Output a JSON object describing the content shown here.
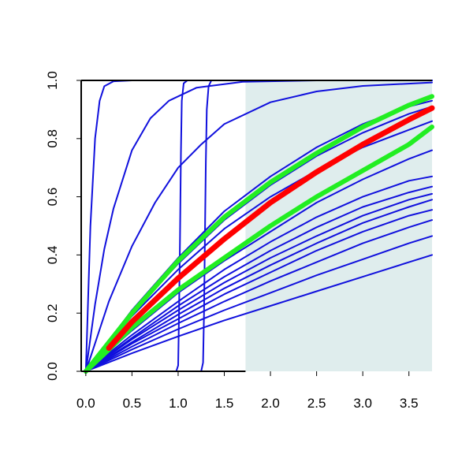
{
  "chart_data": {
    "type": "line",
    "title": "",
    "xlabel": "",
    "ylabel": "",
    "xlim": [
      -0.05,
      3.75
    ],
    "ylim": [
      0,
      1
    ],
    "x_ticks": [
      "0.0",
      "0.5",
      "1.0",
      "1.5",
      "2.0",
      "2.5",
      "3.0",
      "3.5"
    ],
    "y_ticks": [
      "0.0",
      "0.2",
      "0.4",
      "0.6",
      "0.8",
      "1.0"
    ],
    "grid": false,
    "shaded_region": {
      "x_from": 1.73,
      "x_to": 3.75,
      "color": "#dfeded"
    },
    "colors": {
      "blue": "#1010dd",
      "red": "#ff0000",
      "green": "#22ee22",
      "axis": "#000000"
    },
    "series": [
      {
        "color": "blue",
        "width": 2,
        "points": [
          [
            0,
            0
          ],
          [
            0.05,
            0.5
          ],
          [
            0.1,
            0.8
          ],
          [
            0.15,
            0.93
          ],
          [
            0.2,
            0.98
          ],
          [
            0.3,
            0.997
          ],
          [
            0.5,
            1.0
          ],
          [
            3.75,
            1.0
          ]
        ]
      },
      {
        "color": "blue",
        "width": 2,
        "points": [
          [
            0,
            0
          ],
          [
            0.1,
            0.23
          ],
          [
            0.2,
            0.42
          ],
          [
            0.3,
            0.56
          ],
          [
            0.5,
            0.76
          ],
          [
            0.7,
            0.87
          ],
          [
            0.9,
            0.93
          ],
          [
            1.2,
            0.975
          ],
          [
            1.7,
            0.995
          ],
          [
            2.5,
            1.0
          ],
          [
            3.75,
            1.0
          ]
        ]
      },
      {
        "color": "blue",
        "width": 2,
        "points": [
          [
            0,
            0
          ],
          [
            0.25,
            0.24
          ],
          [
            0.5,
            0.43
          ],
          [
            0.75,
            0.58
          ],
          [
            1.0,
            0.7
          ],
          [
            1.25,
            0.78
          ],
          [
            1.5,
            0.85
          ],
          [
            2.0,
            0.925
          ],
          [
            2.5,
            0.962
          ],
          [
            3.0,
            0.981
          ],
          [
            3.75,
            0.993
          ]
        ]
      },
      {
        "color": "blue",
        "width": 2,
        "points": [
          [
            0,
            0
          ],
          [
            0.98,
            0.0
          ],
          [
            1.0,
            0.02
          ],
          [
            1.01,
            0.2
          ],
          [
            1.02,
            0.45
          ],
          [
            1.03,
            0.75
          ],
          [
            1.04,
            0.93
          ],
          [
            1.06,
            0.99
          ],
          [
            1.1,
            1.0
          ],
          [
            3.75,
            1.0
          ]
        ]
      },
      {
        "color": "blue",
        "width": 2,
        "points": [
          [
            0,
            0
          ],
          [
            1.25,
            0.0
          ],
          [
            1.27,
            0.03
          ],
          [
            1.28,
            0.2
          ],
          [
            1.29,
            0.45
          ],
          [
            1.3,
            0.72
          ],
          [
            1.31,
            0.9
          ],
          [
            1.33,
            0.98
          ],
          [
            1.36,
            1.0
          ],
          [
            3.75,
            1.0
          ]
        ]
      },
      {
        "color": "blue",
        "width": 2,
        "points": [
          [
            0,
            0
          ],
          [
            0.5,
            0.19
          ],
          [
            1.0,
            0.35
          ],
          [
            1.5,
            0.49
          ],
          [
            2.0,
            0.6
          ],
          [
            2.5,
            0.69
          ],
          [
            3.0,
            0.77
          ],
          [
            3.5,
            0.83
          ],
          [
            3.75,
            0.86
          ]
        ]
      },
      {
        "color": "blue",
        "width": 2,
        "points": [
          [
            0,
            0
          ],
          [
            0.5,
            0.14
          ],
          [
            1.0,
            0.27
          ],
          [
            1.5,
            0.38
          ],
          [
            2.0,
            0.48
          ],
          [
            2.5,
            0.58
          ],
          [
            3.0,
            0.66
          ],
          [
            3.5,
            0.73
          ],
          [
            3.75,
            0.76
          ]
        ]
      },
      {
        "color": "blue",
        "width": 2,
        "points": [
          [
            0,
            0
          ],
          [
            0.5,
            0.125
          ],
          [
            1.0,
            0.24
          ],
          [
            1.5,
            0.35
          ],
          [
            2.0,
            0.445
          ],
          [
            2.5,
            0.53
          ],
          [
            3.0,
            0.6
          ],
          [
            3.5,
            0.655
          ],
          [
            3.75,
            0.67
          ]
        ]
      },
      {
        "color": "blue",
        "width": 2,
        "points": [
          [
            0,
            0
          ],
          [
            0.5,
            0.115
          ],
          [
            1.0,
            0.225
          ],
          [
            1.5,
            0.325
          ],
          [
            2.0,
            0.415
          ],
          [
            2.5,
            0.495
          ],
          [
            3.0,
            0.565
          ],
          [
            3.5,
            0.615
          ],
          [
            3.75,
            0.635
          ]
        ]
      },
      {
        "color": "blue",
        "width": 2,
        "points": [
          [
            0,
            0
          ],
          [
            0.5,
            0.11
          ],
          [
            1.0,
            0.21
          ],
          [
            1.5,
            0.305
          ],
          [
            2.0,
            0.39
          ],
          [
            2.5,
            0.465
          ],
          [
            3.0,
            0.535
          ],
          [
            3.5,
            0.59
          ],
          [
            3.75,
            0.61
          ]
        ]
      },
      {
        "color": "blue",
        "width": 2,
        "points": [
          [
            0,
            0
          ],
          [
            0.5,
            0.1
          ],
          [
            1.0,
            0.195
          ],
          [
            1.5,
            0.285
          ],
          [
            2.0,
            0.365
          ],
          [
            2.5,
            0.44
          ],
          [
            3.0,
            0.51
          ],
          [
            3.5,
            0.565
          ],
          [
            3.75,
            0.59
          ]
        ]
      },
      {
        "color": "blue",
        "width": 2,
        "points": [
          [
            0,
            0
          ],
          [
            0.5,
            0.095
          ],
          [
            1.0,
            0.18
          ],
          [
            1.5,
            0.265
          ],
          [
            2.0,
            0.34
          ],
          [
            2.5,
            0.415
          ],
          [
            3.0,
            0.48
          ],
          [
            3.5,
            0.535
          ],
          [
            3.75,
            0.555
          ]
        ]
      },
      {
        "color": "blue",
        "width": 2,
        "points": [
          [
            0,
            0
          ],
          [
            0.5,
            0.085
          ],
          [
            1.0,
            0.165
          ],
          [
            1.5,
            0.24
          ],
          [
            2.0,
            0.31
          ],
          [
            2.5,
            0.375
          ],
          [
            3.0,
            0.44
          ],
          [
            3.5,
            0.495
          ],
          [
            3.75,
            0.52
          ]
        ]
      },
      {
        "color": "blue",
        "width": 2,
        "points": [
          [
            0,
            0
          ],
          [
            0.5,
            0.075
          ],
          [
            1.0,
            0.145
          ],
          [
            1.5,
            0.21
          ],
          [
            2.0,
            0.27
          ],
          [
            2.5,
            0.33
          ],
          [
            3.0,
            0.385
          ],
          [
            3.5,
            0.44
          ],
          [
            3.75,
            0.465
          ]
        ]
      },
      {
        "color": "blue",
        "width": 2,
        "points": [
          [
            0,
            0
          ],
          [
            0.5,
            0.062
          ],
          [
            1.0,
            0.12
          ],
          [
            1.5,
            0.175
          ],
          [
            2.0,
            0.225
          ],
          [
            2.5,
            0.275
          ],
          [
            3.0,
            0.325
          ],
          [
            3.5,
            0.375
          ],
          [
            3.75,
            0.4
          ]
        ]
      },
      {
        "color": "blue",
        "width": 2,
        "points": [
          [
            0,
            0
          ],
          [
            0.5,
            0.2
          ],
          [
            1.0,
            0.37
          ],
          [
            1.5,
            0.52
          ],
          [
            2.0,
            0.64
          ],
          [
            2.5,
            0.74
          ],
          [
            3.0,
            0.82
          ],
          [
            3.5,
            0.885
          ],
          [
            3.75,
            0.91
          ]
        ]
      },
      {
        "color": "blue",
        "width": 2,
        "points": [
          [
            0,
            0
          ],
          [
            0.5,
            0.21
          ],
          [
            1.0,
            0.39
          ],
          [
            1.5,
            0.55
          ],
          [
            2.0,
            0.67
          ],
          [
            2.5,
            0.77
          ],
          [
            3.0,
            0.85
          ],
          [
            3.5,
            0.91
          ],
          [
            3.75,
            0.93
          ]
        ]
      },
      {
        "color": "green",
        "width": 6,
        "points": [
          [
            0,
            0
          ],
          [
            0.5,
            0.2
          ],
          [
            1.0,
            0.38
          ],
          [
            1.5,
            0.53
          ],
          [
            2.0,
            0.65
          ],
          [
            2.5,
            0.75
          ],
          [
            3.0,
            0.84
          ],
          [
            3.5,
            0.915
          ],
          [
            3.75,
            0.945
          ]
        ]
      },
      {
        "color": "green",
        "width": 6,
        "points": [
          [
            0,
            0
          ],
          [
            0.5,
            0.15
          ],
          [
            1.0,
            0.28
          ],
          [
            1.5,
            0.39
          ],
          [
            2.0,
            0.5
          ],
          [
            2.5,
            0.6
          ],
          [
            3.0,
            0.69
          ],
          [
            3.5,
            0.78
          ],
          [
            3.75,
            0.84
          ]
        ]
      },
      {
        "color": "red",
        "width": 7,
        "points": [
          [
            0.25,
            0.08
          ],
          [
            0.5,
            0.17
          ],
          [
            1.0,
            0.32
          ],
          [
            1.5,
            0.455
          ],
          [
            2.0,
            0.58
          ],
          [
            2.5,
            0.685
          ],
          [
            3.0,
            0.78
          ],
          [
            3.5,
            0.865
          ],
          [
            3.75,
            0.905
          ]
        ]
      }
    ]
  }
}
